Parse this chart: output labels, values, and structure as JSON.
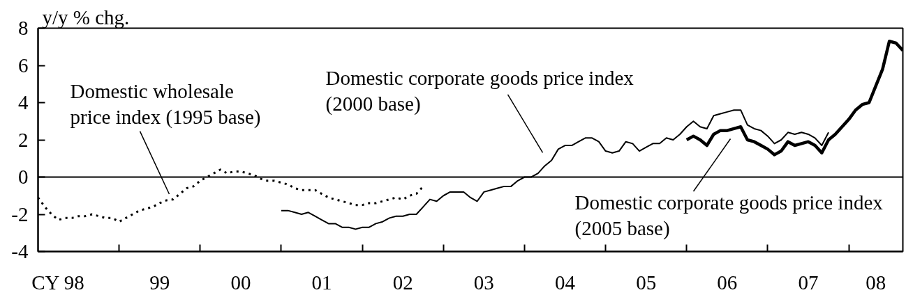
{
  "chart_data": {
    "type": "line",
    "ylabel": "y/y % chg.",
    "xlim": [
      "1998-01",
      "2008-09"
    ],
    "xticks": [
      {
        "value": "1998-04",
        "label": "CY 98"
      },
      {
        "value": "1999-01",
        "label": null
      },
      {
        "value": "1999-07",
        "label": "99"
      },
      {
        "value": "2000-01",
        "label": null
      },
      {
        "value": "2000-07",
        "label": "00"
      },
      {
        "value": "2001-01",
        "label": null
      },
      {
        "value": "2001-07",
        "label": "01"
      },
      {
        "value": "2002-01",
        "label": null
      },
      {
        "value": "2002-07",
        "label": "02"
      },
      {
        "value": "2003-01",
        "label": null
      },
      {
        "value": "2003-07",
        "label": "03"
      },
      {
        "value": "2004-01",
        "label": null
      },
      {
        "value": "2004-07",
        "label": "04"
      },
      {
        "value": "2005-01",
        "label": null
      },
      {
        "value": "2005-07",
        "label": "05"
      },
      {
        "value": "2006-01",
        "label": null
      },
      {
        "value": "2006-07",
        "label": "06"
      },
      {
        "value": "2007-01",
        "label": null
      },
      {
        "value": "2007-07",
        "label": "07"
      },
      {
        "value": "2008-01",
        "label": null
      },
      {
        "value": "2008-05",
        "label": "08"
      }
    ],
    "ylim": [
      -4,
      8
    ],
    "yticks": [
      -4,
      -2,
      0,
      2,
      4,
      6,
      8
    ],
    "grid": false,
    "ref_lines": [
      {
        "axis": "y",
        "value": 0,
        "color": "#000000"
      }
    ],
    "series": [
      {
        "color": "#000000",
        "line_style": "dotted",
        "x": [
          "1998-01",
          "1998-02",
          "1998-03",
          "1998-04",
          "1998-05",
          "1998-06",
          "1998-07",
          "1998-08",
          "1998-09",
          "1998-10",
          "1998-11",
          "1998-12",
          "1999-01",
          "1999-02",
          "1999-03",
          "1999-04",
          "1999-05",
          "1999-06",
          "1999-07",
          "1999-08",
          "1999-09",
          "1999-10",
          "1999-11",
          "1999-12",
          "2000-01",
          "2000-02",
          "2000-03",
          "2000-04",
          "2000-05",
          "2000-06",
          "2000-07",
          "2000-08",
          "2000-09",
          "2000-10",
          "2000-11",
          "2000-12",
          "2001-01",
          "2001-02",
          "2001-03",
          "2001-04",
          "2001-05",
          "2001-06",
          "2001-07",
          "2001-08",
          "2001-09",
          "2001-10",
          "2001-11",
          "2001-12",
          "2002-01",
          "2002-02",
          "2002-03",
          "2002-04",
          "2002-05",
          "2002-06",
          "2002-07",
          "2002-08",
          "2002-09",
          "2002-10"
        ],
        "values": [
          -1.1,
          -1.6,
          -2.0,
          -2.3,
          -2.2,
          -2.2,
          -2.1,
          -2.1,
          -2.0,
          -2.1,
          -2.2,
          -2.2,
          -2.4,
          -2.2,
          -2.0,
          -1.8,
          -1.7,
          -1.6,
          -1.4,
          -1.25,
          -1.2,
          -0.9,
          -0.6,
          -0.5,
          -0.2,
          0.0,
          0.2,
          0.4,
          0.2,
          0.3,
          0.3,
          0.2,
          0.1,
          -0.1,
          -0.2,
          -0.2,
          -0.3,
          -0.4,
          -0.6,
          -0.7,
          -0.7,
          -0.7,
          -0.9,
          -1.1,
          -1.2,
          -1.3,
          -1.4,
          -1.5,
          -1.5,
          -1.4,
          -1.4,
          -1.3,
          -1.2,
          -1.1,
          -1.2,
          -1.0,
          -0.9,
          -0.5
        ]
      },
      {
        "color": "#000000",
        "line_style": "solid",
        "x": [
          "2001-01",
          "2001-02",
          "2001-03",
          "2001-04",
          "2001-05",
          "2001-06",
          "2001-07",
          "2001-08",
          "2001-09",
          "2001-10",
          "2001-11",
          "2001-12",
          "2002-01",
          "2002-02",
          "2002-03",
          "2002-04",
          "2002-05",
          "2002-06",
          "2002-07",
          "2002-08",
          "2002-09",
          "2002-10",
          "2002-11",
          "2002-12",
          "2003-01",
          "2003-02",
          "2003-03",
          "2003-04",
          "2003-05",
          "2003-06",
          "2003-07",
          "2003-08",
          "2003-09",
          "2003-10",
          "2003-11",
          "2003-12",
          "2004-01",
          "2004-02",
          "2004-03",
          "2004-04",
          "2004-05",
          "2004-06",
          "2004-07",
          "2004-08",
          "2004-09",
          "2004-10",
          "2004-11",
          "2004-12",
          "2005-01",
          "2005-02",
          "2005-03",
          "2005-04",
          "2005-05",
          "2005-06",
          "2005-07",
          "2005-08",
          "2005-09",
          "2005-10",
          "2005-11",
          "2005-12",
          "2006-01",
          "2006-02",
          "2006-03",
          "2006-04",
          "2006-05",
          "2006-06",
          "2006-07",
          "2006-08",
          "2006-09",
          "2006-10",
          "2006-11",
          "2006-12",
          "2007-01",
          "2007-02",
          "2007-03",
          "2007-04",
          "2007-05",
          "2007-06",
          "2007-07",
          "2007-08",
          "2007-09",
          "2007-10"
        ],
        "values": [
          -1.8,
          -1.8,
          -1.9,
          -2.0,
          -1.9,
          -2.1,
          -2.3,
          -2.5,
          -2.5,
          -2.7,
          -2.7,
          -2.8,
          -2.7,
          -2.7,
          -2.5,
          -2.4,
          -2.2,
          -2.1,
          -2.1,
          -2.0,
          -2.0,
          -1.6,
          -1.2,
          -1.3,
          -1.0,
          -0.8,
          -0.8,
          -0.8,
          -1.1,
          -1.3,
          -0.8,
          -0.7,
          -0.6,
          -0.5,
          -0.5,
          -0.2,
          0.0,
          0.0,
          0.2,
          0.6,
          0.9,
          1.5,
          1.7,
          1.7,
          1.9,
          2.1,
          2.1,
          1.9,
          1.4,
          1.3,
          1.4,
          1.9,
          1.8,
          1.4,
          1.6,
          1.8,
          1.8,
          2.1,
          2.0,
          2.3,
          2.7,
          3.0,
          2.7,
          2.6,
          3.3,
          3.4,
          3.5,
          3.6,
          3.6,
          2.8,
          2.6,
          2.5,
          2.2,
          1.8,
          2.0,
          2.4,
          2.3,
          2.4,
          2.3,
          2.1,
          1.7,
          2.4
        ]
      },
      {
        "color": "#000000",
        "line_style": "solid",
        "x": [
          "2006-01",
          "2006-02",
          "2006-03",
          "2006-04",
          "2006-05",
          "2006-06",
          "2006-07",
          "2006-08",
          "2006-09",
          "2006-10",
          "2006-11",
          "2006-12",
          "2007-01",
          "2007-02",
          "2007-03",
          "2007-04",
          "2007-05",
          "2007-06",
          "2007-07",
          "2007-08",
          "2007-09",
          "2007-10",
          "2007-11",
          "2007-12",
          "2008-01",
          "2008-02",
          "2008-03",
          "2008-04",
          "2008-05",
          "2008-06",
          "2008-07",
          "2008-08",
          "2008-09"
        ],
        "values": [
          2.0,
          2.2,
          2.0,
          1.7,
          2.3,
          2.5,
          2.5,
          2.6,
          2.7,
          2.0,
          1.9,
          1.7,
          1.5,
          1.2,
          1.4,
          1.9,
          1.7,
          1.8,
          1.9,
          1.7,
          1.3,
          2.0,
          2.3,
          2.7,
          3.1,
          3.6,
          3.9,
          4.0,
          4.9,
          5.8,
          7.3,
          7.2,
          6.8
        ]
      }
    ],
    "annotations": [
      "Domestic wholesale\nprice index (1995 base)",
      "Domestic corporate goods price index\n(2000 base)",
      "Domestic corporate goods price index\n(2005 base)"
    ]
  }
}
